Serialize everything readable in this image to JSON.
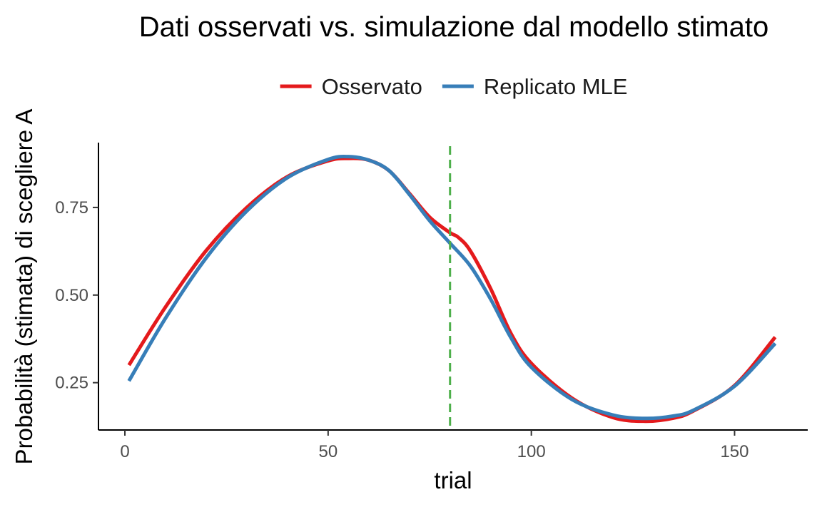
{
  "chart_data": {
    "type": "line",
    "title": "Dati osservati vs. simulazione dal modello stimato",
    "xlabel": "trial",
    "ylabel": "Probabilità (stimata) di scegliere A",
    "xlim": [
      -6.5,
      168
    ],
    "ylim": [
      0.115,
      0.935
    ],
    "x_ticks": [
      0,
      50,
      100,
      150
    ],
    "x_tick_labels": [
      "0",
      "50",
      "100",
      "150"
    ],
    "y_ticks": [
      0.25,
      0.5,
      0.75
    ],
    "y_tick_labels": [
      "0.25",
      "0.50",
      "0.75"
    ],
    "grid": false,
    "legend_position": "top",
    "reference_line": {
      "axis": "x",
      "value": 80,
      "color": "#4DAF4A",
      "style": "dashed"
    },
    "series": [
      {
        "name": "Osservato",
        "color": "#E41A1C",
        "x": [
          1,
          10,
          20,
          30,
          40,
          50,
          55,
          60,
          65,
          70,
          75,
          80,
          82,
          85,
          90,
          95,
          100,
          110,
          120,
          128,
          135,
          140,
          150,
          160
        ],
        "y": [
          0.3,
          0.466,
          0.627,
          0.75,
          0.838,
          0.883,
          0.89,
          0.885,
          0.855,
          0.79,
          0.722,
          0.678,
          0.665,
          0.626,
          0.518,
          0.39,
          0.305,
          0.206,
          0.151,
          0.14,
          0.149,
          0.17,
          0.242,
          0.38
        ]
      },
      {
        "name": "Replicato MLE",
        "color": "#377EB8",
        "x": [
          1,
          10,
          20,
          30,
          40,
          50,
          55,
          60,
          65,
          70,
          75,
          80,
          85,
          90,
          95,
          100,
          110,
          120,
          128,
          135,
          140,
          150,
          160
        ],
        "y": [
          0.255,
          0.434,
          0.606,
          0.74,
          0.835,
          0.887,
          0.895,
          0.885,
          0.855,
          0.787,
          0.712,
          0.648,
          0.583,
          0.488,
          0.378,
          0.294,
          0.202,
          0.158,
          0.148,
          0.155,
          0.172,
          0.24,
          0.362
        ]
      }
    ]
  }
}
